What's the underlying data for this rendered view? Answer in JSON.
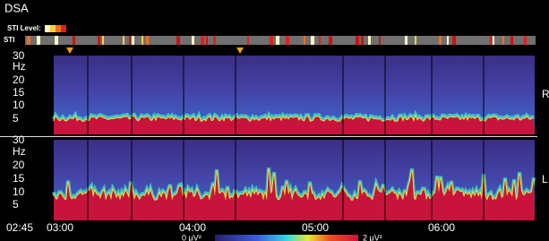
{
  "header": {
    "title": "DSA",
    "sti_level_label": "STI Level:"
  },
  "sti_label": "STI",
  "panels": [
    {
      "side": "R",
      "y_labels": [
        "30",
        "Hz",
        "20",
        "15",
        "10",
        "5"
      ]
    },
    {
      "side": "L",
      "y_labels": [
        "30",
        "Hz",
        "20",
        "15",
        "10",
        "5"
      ]
    }
  ],
  "time_labels": [
    "02:45",
    "03:00",
    "04:00",
    "05:00",
    "06:00"
  ],
  "colorbar": {
    "min_label": "0 μV²",
    "max_label": "2 μV²"
  }
}
